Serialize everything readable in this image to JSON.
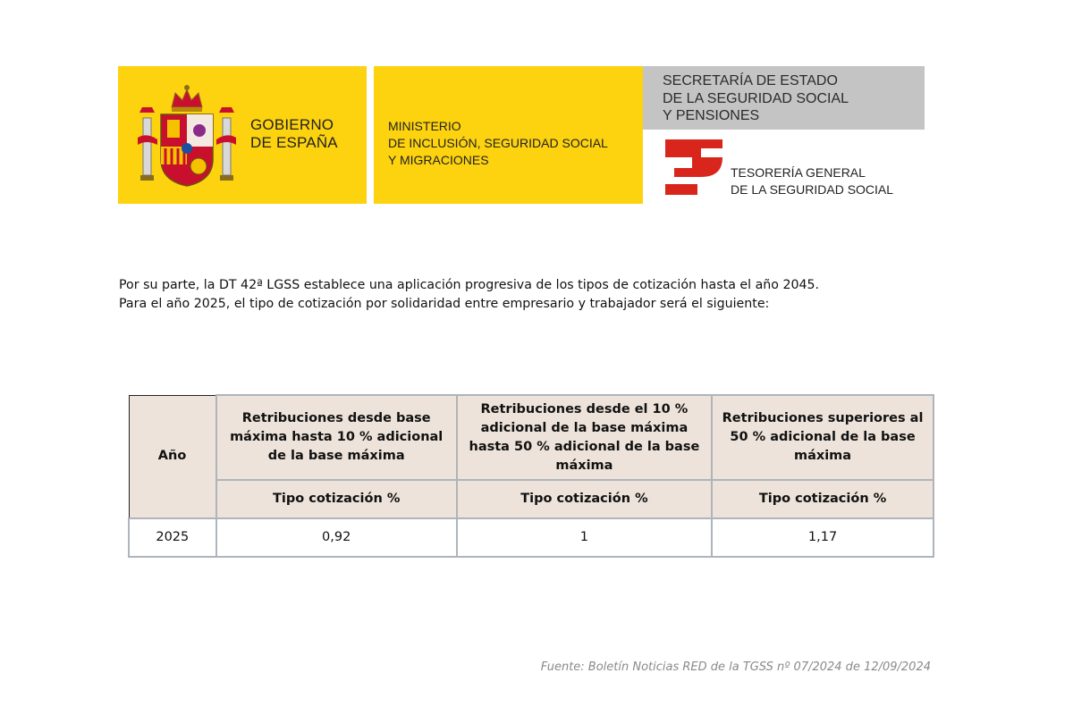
{
  "header": {
    "gobierno": [
      "GOBIERNO",
      "DE ESPAÑA"
    ],
    "ministerio": [
      "MINISTERIO",
      "DE INCLUSIÓN, SEGURIDAD SOCIAL",
      "Y MIGRACIONES"
    ],
    "secretaria": [
      "SECRETARÍA DE ESTADO",
      "DE LA SEGURIDAD SOCIAL",
      "Y PENSIONES"
    ],
    "tesoreria": [
      "TESORERÍA GENERAL",
      "DE LA SEGURIDAD SOCIAL"
    ],
    "icons": {
      "shield": "coat-of-arms-of-spain",
      "tgss": "tgss-logo"
    },
    "colors": {
      "yellow": "#fdd20f",
      "grey": "#c4c4c4",
      "red": "#d9261c"
    }
  },
  "intro": [
    "Por su parte, la DT 42ª LGSS establece una aplicación progresiva de los tipos de cotización hasta el año 2045.",
    "Para el año 2025, el tipo de cotización por solidaridad entre empresario y trabajador será el siguiente:"
  ],
  "table": {
    "year_header": "Año",
    "groups": [
      "Retribuciones desde base máxima hasta 10 % adicional de la base máxima",
      "Retribuciones desde el 10 % adicional de la base máxima hasta 50 % adicional de la base máxima",
      "Retribuciones superiores al 50 % adicional de la base máxima"
    ],
    "subheaders": [
      "Tipo cotización %",
      "Tipo cotización %",
      "Tipo cotización %"
    ],
    "rows": [
      {
        "year": "2025",
        "values": [
          "0,92",
          "1",
          "1,17"
        ]
      }
    ],
    "colors": {
      "header_bg": "#ede3da",
      "border": "#aeb4bc"
    }
  },
  "source": "Fuente:  Boletín Noticias RED de la TGSS nº 07/2024 de 12/09/2024"
}
